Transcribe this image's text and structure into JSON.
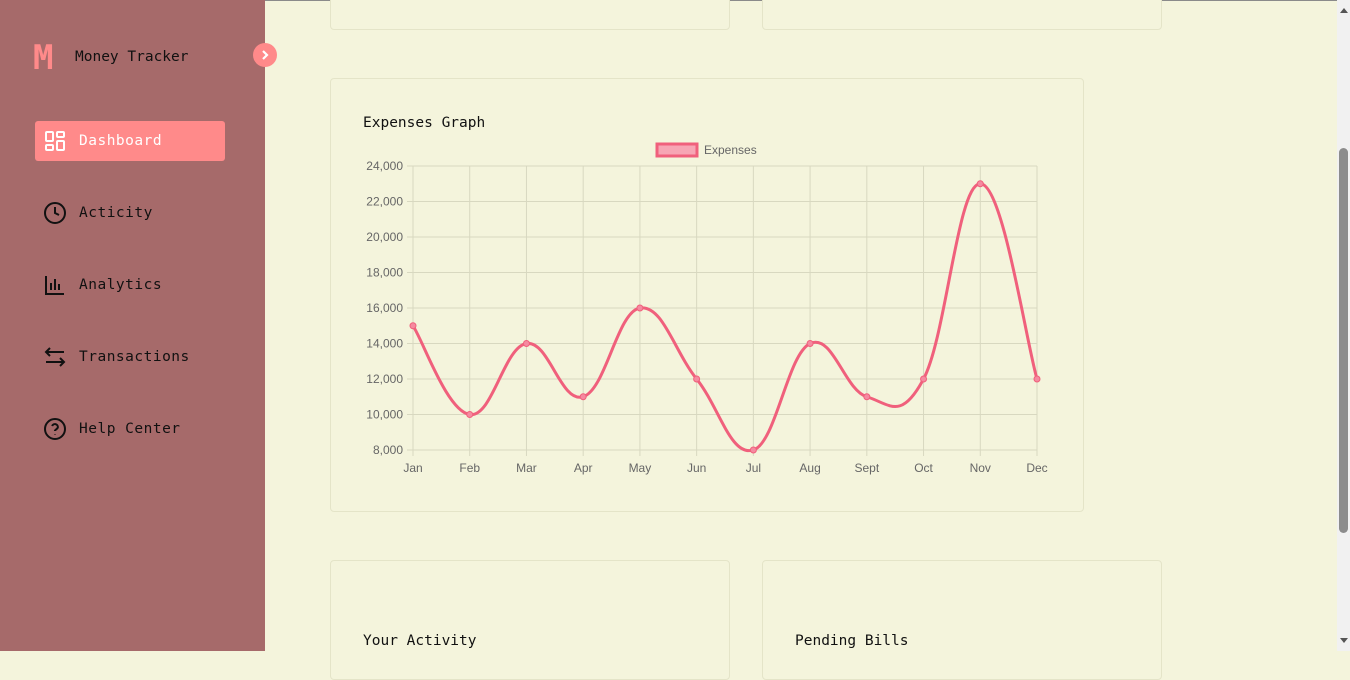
{
  "app": {
    "logo_letter": "M",
    "title": "Money Tracker"
  },
  "sidebar": {
    "items": [
      {
        "label": "Dashboard",
        "icon": "dashboard-grid-icon",
        "active": true
      },
      {
        "label": "Acticity",
        "icon": "clock-icon",
        "active": false
      },
      {
        "label": "Analytics",
        "icon": "bar-chart-icon",
        "active": false
      },
      {
        "label": "Transactions",
        "icon": "swap-arrows-icon",
        "active": false
      },
      {
        "label": "Help Center",
        "icon": "help-circle-icon",
        "active": false
      }
    ]
  },
  "colors": {
    "sidebar_bg": "#a66a6a",
    "accent": "#ff8a8a",
    "page_bg": "#f4f4dc",
    "line": "#f0607c"
  },
  "cards": {
    "expenses_title": "Expenses Graph",
    "activity_title": "Your Activity",
    "bills_title": "Pending Bills"
  },
  "chart_data": {
    "type": "line",
    "title": "Expenses Graph",
    "categories": [
      "Jan",
      "Feb",
      "Mar",
      "Apr",
      "May",
      "Jun",
      "Jul",
      "Aug",
      "Sept",
      "Oct",
      "Nov",
      "Dec"
    ],
    "series": [
      {
        "name": "Expenses",
        "values": [
          15000,
          10000,
          14000,
          11000,
          16000,
          12000,
          8000,
          14000,
          11000,
          12000,
          23000,
          12000
        ]
      }
    ],
    "ylim": [
      8000,
      24000
    ],
    "yticks": [
      "24,000",
      "22,000",
      "20,000",
      "18,000",
      "16,000",
      "14,000",
      "12,000",
      "10,000",
      "8,000"
    ],
    "legend": "top-center",
    "grid": true
  }
}
